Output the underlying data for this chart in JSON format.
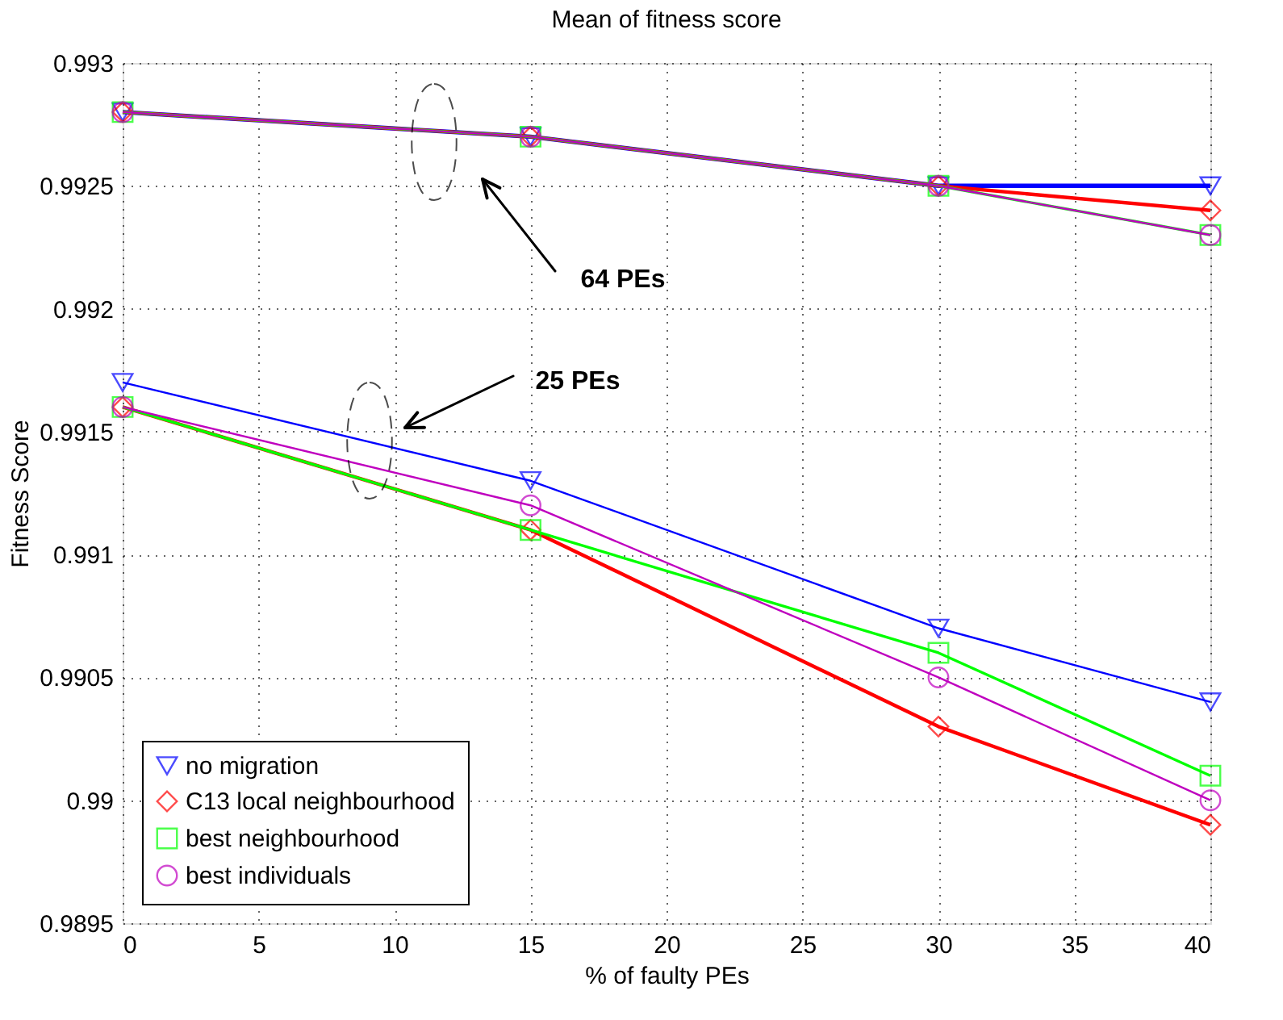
{
  "chart_data": {
    "type": "line",
    "title": "Mean of fitness score",
    "xlabel": "% of faulty PEs",
    "ylabel": "Fitness Score",
    "x": [
      0,
      15,
      30,
      40
    ],
    "series": [
      {
        "name": "no migration",
        "color": "#0000ff",
        "marker": "triangle-down",
        "values": [
          0.9917,
          0.9913,
          0.9907,
          0.9904
        ]
      },
      {
        "name": "C13 local neighbourhood",
        "color": "#ff0000",
        "marker": "diamond",
        "values": [
          0.9916,
          0.9911,
          0.9903,
          0.9899
        ]
      },
      {
        "name": "best neighbourhood",
        "color": "#00ff00",
        "marker": "square",
        "values": [
          0.9916,
          0.9911,
          0.9906,
          0.9901
        ]
      },
      {
        "name": "best individuals",
        "color": "#bf00bf",
        "marker": "circle",
        "values": [
          0.9916,
          0.9912,
          0.9905,
          0.99
        ]
      },
      {
        "color": "#0000ff",
        "marker": "triangle-down",
        "values": [
          0.9928,
          0.9927,
          0.9925,
          0.9925
        ]
      },
      {
        "color": "#ff0000",
        "marker": "diamond",
        "values": [
          0.9928,
          0.9927,
          0.9925,
          0.9924
        ]
      },
      {
        "color": "#00ff00",
        "marker": "square",
        "values": [
          0.9928,
          0.9927,
          0.9925,
          0.9923
        ]
      },
      {
        "color": "#bf00bf",
        "marker": "circle",
        "values": [
          0.9928,
          0.9927,
          0.9925,
          0.9923
        ]
      }
    ],
    "annotations": [
      "64 PEs",
      "25 PEs"
    ],
    "xlim": [
      0,
      40
    ],
    "xticks": [
      0,
      5,
      10,
      15,
      20,
      25,
      30,
      35,
      40
    ],
    "ylim": [
      0.9895,
      0.993
    ],
    "yticks": [
      0.9895,
      0.99,
      0.9905,
      0.991,
      0.9915,
      0.992,
      0.9925,
      0.993
    ],
    "grid": true,
    "legend": "bottom left",
    "line_style": "solid"
  }
}
